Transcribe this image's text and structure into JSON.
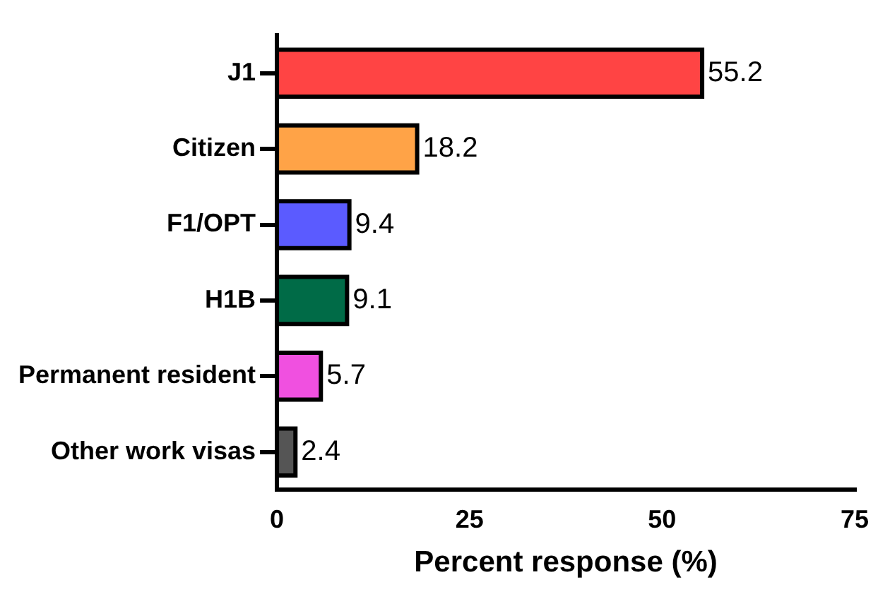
{
  "chart_data": {
    "type": "bar",
    "orientation": "horizontal",
    "categories": [
      "J1",
      "Citizen",
      "F1/OPT",
      "H1B",
      "Permanent resident",
      "Other work visas"
    ],
    "values": [
      55.2,
      18.2,
      9.4,
      9.1,
      5.7,
      2.4
    ],
    "colors": [
      "#ff4444",
      "#ffa347",
      "#5b5bff",
      "#006b47",
      "#f050e0",
      "#555555"
    ],
    "xlabel": "Percent response (%)",
    "xlim": [
      0,
      75
    ],
    "xticks": [
      0,
      25,
      50,
      75
    ],
    "grid": false,
    "legend": false,
    "data_labels": true
  }
}
